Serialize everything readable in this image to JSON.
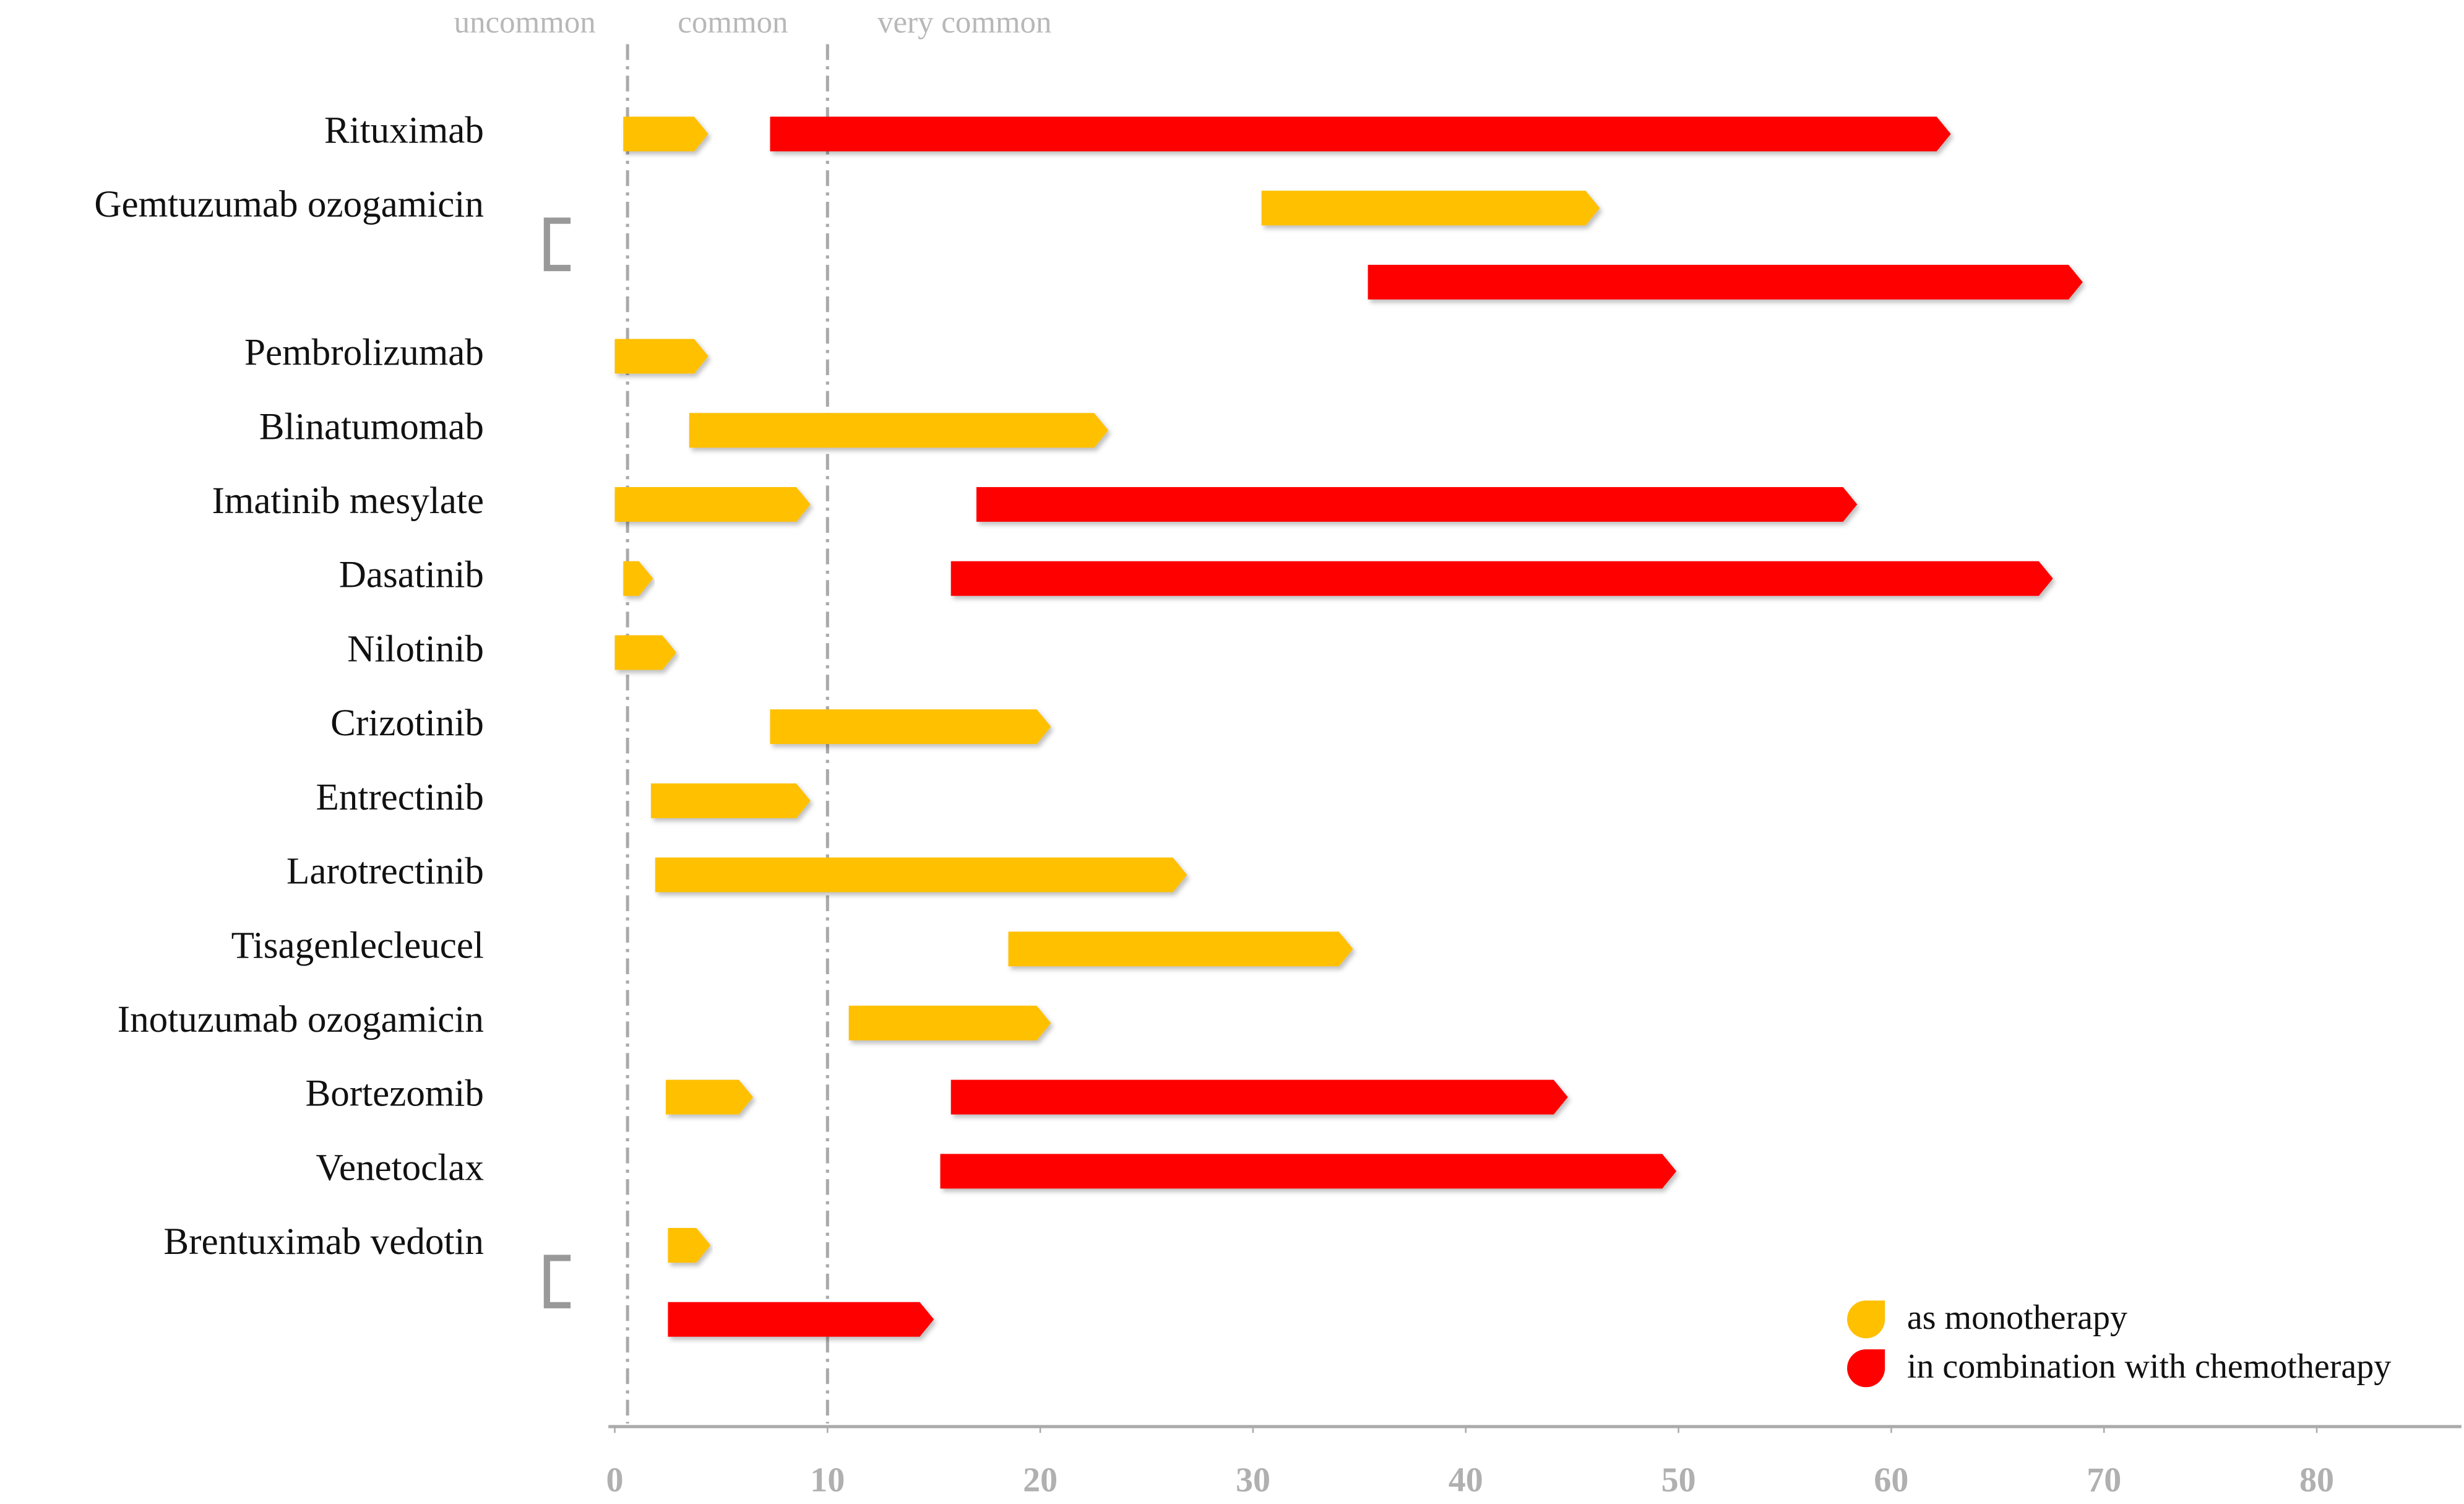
{
  "chart_data": {
    "type": "range-bar",
    "annotations": [
      "uncommon",
      "common",
      "very common"
    ],
    "reference_lines": [
      0.6,
      10
    ],
    "categories": [
      "Rituximab",
      "Gemtuzumab ozogamicin",
      null,
      "Pembrolizumab",
      "Blinatumomab",
      "Imatinib mesylate",
      "Dasatinib",
      "Nilotinib",
      "Crizotinib",
      "Entrectinib",
      "Larotrectinib",
      "Tisagenlecleucel",
      "Inotuzumab ozogamicin",
      "Bortezomib",
      "Venetoclax",
      "Brentuximab vedotin",
      null
    ],
    "series": [
      {
        "name": "as monotherapy",
        "color": "#ffc000",
        "values": [
          [
            0.4,
            4.4
          ],
          [
            30.4,
            46.3
          ],
          null,
          [
            0,
            4.4
          ],
          [
            3.5,
            23.2
          ],
          [
            0,
            9.2
          ],
          [
            0.4,
            1.8
          ],
          [
            0,
            2.9
          ],
          [
            7.3,
            20.5
          ],
          [
            1.7,
            9.2
          ],
          [
            1.9,
            26.9
          ],
          [
            18.5,
            34.7
          ],
          [
            11.0,
            20.5
          ],
          [
            2.4,
            6.5
          ],
          null,
          [
            2.5,
            4.5
          ],
          null
        ]
      },
      {
        "name": "in combination with chemotherapy",
        "color": "#ff0000",
        "values": [
          [
            7.3,
            62.8
          ],
          null,
          [
            35.4,
            69.0
          ],
          null,
          null,
          [
            17.0,
            58.4
          ],
          [
            15.8,
            67.6
          ],
          null,
          null,
          null,
          null,
          null,
          null,
          [
            15.8,
            44.8
          ],
          [
            15.3,
            49.9
          ],
          null,
          [
            2.5,
            15.0
          ]
        ]
      }
    ],
    "xlim": [
      -0.3,
      86.8
    ],
    "xticks": [
      0,
      10,
      20,
      30,
      40,
      50,
      60,
      70,
      80
    ],
    "legend": "lower right"
  }
}
